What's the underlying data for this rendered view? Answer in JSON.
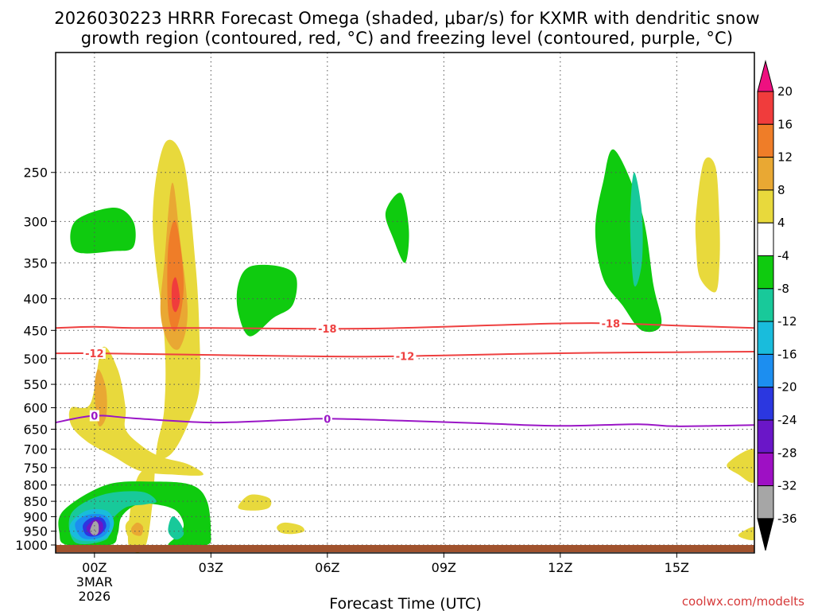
{
  "chart_data": {
    "type": "time-height-contour",
    "title_line1": "2026030223 HRRR Forecast Omega (shaded, μbar/s) for KXMR with dendritic snow",
    "title_line2": "growth region (contoured, red, °C) and freezing level (contoured, purple, °C)",
    "xlabel": "Forecast Time (UTC)",
    "credit": "coolwx.com/modelts",
    "x_range_hours": [
      -1,
      17
    ],
    "x_ticks": [
      {
        "hour": 0,
        "label": "00Z",
        "sub1": "3MAR",
        "sub2": "2026"
      },
      {
        "hour": 3,
        "label": "03Z"
      },
      {
        "hour": 6,
        "label": "06Z"
      },
      {
        "hour": 9,
        "label": "09Z"
      },
      {
        "hour": 12,
        "label": "12Z"
      },
      {
        "hour": 15,
        "label": "15Z"
      }
    ],
    "y_range_mb": [
      1030,
      160
    ],
    "y_ticks": [
      {
        "value": 250,
        "label": "250"
      },
      {
        "value": 300,
        "label": "300"
      },
      {
        "value": 350,
        "label": "350"
      },
      {
        "value": 400,
        "label": "400"
      },
      {
        "value": 450,
        "label": "450"
      },
      {
        "value": 500,
        "label": "500"
      },
      {
        "value": 550,
        "label": "550"
      },
      {
        "value": 600,
        "label": "600"
      },
      {
        "value": 650,
        "label": "650"
      },
      {
        "value": 700,
        "label": "700"
      },
      {
        "value": 750,
        "label": "750"
      },
      {
        "value": 800,
        "label": "800"
      },
      {
        "value": 850,
        "label": "850"
      },
      {
        "value": 900,
        "label": "900"
      },
      {
        "value": 950,
        "label": "950"
      },
      {
        "value": 1000,
        "label": "1000"
      }
    ],
    "colorbar": [
      {
        "label": "20",
        "color": "#ee1080"
      },
      {
        "label": "16",
        "color": "#f03c3c"
      },
      {
        "label": "12",
        "color": "#ef7d28"
      },
      {
        "label": "8",
        "color": "#e9a833"
      },
      {
        "label": "4",
        "color": "#e8d93c"
      },
      {
        "label": "-4",
        "color": "#ffffff"
      },
      {
        "label": "-8",
        "color": "#0fcb0f"
      },
      {
        "label": "-12",
        "color": "#18c99a"
      },
      {
        "label": "-16",
        "color": "#19bcdc"
      },
      {
        "label": "-20",
        "color": "#1c8ef0"
      },
      {
        "label": "-24",
        "color": "#2b37e0"
      },
      {
        "label": "-28",
        "color": "#6a16c8"
      },
      {
        "label": "-32",
        "color": "#9e10c4"
      },
      {
        "label": "-36",
        "color": "#a6a6a6"
      }
    ],
    "colorbar_bottom_color": "#000000",
    "contour_lines": [
      {
        "name": "-18C",
        "label": "-18",
        "color": "#ee4040",
        "points": [
          [
            -1,
            446
          ],
          [
            0,
            444
          ],
          [
            1,
            446
          ],
          [
            3,
            446
          ],
          [
            5,
            447
          ],
          [
            7,
            447
          ],
          [
            9,
            444
          ],
          [
            11,
            440
          ],
          [
            13,
            438
          ],
          [
            15,
            442
          ],
          [
            17,
            446
          ]
        ],
        "label_hours": [
          6,
          13.3
        ]
      },
      {
        "name": "-12C",
        "label": "-12",
        "color": "#ee4040",
        "points": [
          [
            -1,
            490
          ],
          [
            0,
            490
          ],
          [
            1,
            491
          ],
          [
            3,
            493
          ],
          [
            5,
            495
          ],
          [
            7,
            496
          ],
          [
            9,
            494
          ],
          [
            11,
            491
          ],
          [
            13,
            489
          ],
          [
            15,
            488
          ],
          [
            17,
            487
          ]
        ],
        "label_hours": [
          0,
          8
        ]
      },
      {
        "name": "0C",
        "label": "0",
        "color": "#9a16c6",
        "points": [
          [
            -1,
            634
          ],
          [
            0,
            618
          ],
          [
            1,
            624
          ],
          [
            3,
            634
          ],
          [
            5,
            628
          ],
          [
            6,
            625
          ],
          [
            8,
            630
          ],
          [
            10,
            636
          ],
          [
            12,
            642
          ],
          [
            14,
            638
          ],
          [
            15,
            643
          ],
          [
            17,
            640
          ]
        ],
        "label_hours": [
          0,
          6
        ]
      }
    ],
    "omega_regions": [
      {
        "label": "4",
        "points": [
          [
            1.3,
            1010
          ],
          [
            1.5,
            850
          ],
          [
            1.6,
            700
          ],
          [
            1.8,
            600
          ],
          [
            1.8,
            460
          ],
          [
            1.5,
            300
          ],
          [
            1.8,
            225
          ],
          [
            2.3,
            240
          ],
          [
            2.6,
            350
          ],
          [
            2.7,
            450
          ],
          [
            2.7,
            560
          ],
          [
            2.4,
            640
          ],
          [
            2.0,
            710
          ],
          [
            1.5,
            740
          ],
          [
            1.1,
            780
          ],
          [
            0.9,
            900
          ],
          [
            0.9,
            1010
          ]
        ]
      },
      {
        "label": "4",
        "points": [
          [
            -0.1,
            590
          ],
          [
            0.2,
            480
          ],
          [
            0.6,
            520
          ],
          [
            0.8,
            600
          ],
          [
            0.8,
            650
          ],
          [
            1.2,
            690
          ],
          [
            1.7,
            720
          ],
          [
            2.4,
            740
          ],
          [
            2.8,
            770
          ],
          [
            2.1,
            770
          ],
          [
            1.2,
            760
          ],
          [
            0.5,
            720
          ],
          [
            -0.2,
            680
          ],
          [
            -0.6,
            640
          ],
          [
            -0.6,
            600
          ]
        ]
      },
      {
        "label": "8",
        "points": [
          [
            0,
            560
          ],
          [
            0.1,
            520
          ],
          [
            0.3,
            560
          ],
          [
            0.3,
            620
          ],
          [
            0.1,
            640
          ]
        ]
      },
      {
        "label": "8",
        "points": [
          [
            1.8,
            350
          ],
          [
            2.0,
            260
          ],
          [
            2.2,
            320
          ],
          [
            2.4,
            420
          ],
          [
            2.2,
            480
          ],
          [
            1.9,
            470
          ],
          [
            1.7,
            420
          ]
        ]
      },
      {
        "label": "12",
        "points": [
          [
            1.9,
            330
          ],
          [
            2.1,
            300
          ],
          [
            2.3,
            380
          ],
          [
            2.1,
            450
          ],
          [
            1.9,
            420
          ]
        ]
      },
      {
        "label": "16",
        "points": [
          [
            2.0,
            380
          ],
          [
            2.1,
            370
          ],
          [
            2.2,
            400
          ],
          [
            2.1,
            420
          ],
          [
            2.0,
            410
          ]
        ]
      },
      {
        "label": "4",
        "points": [
          [
            3.7,
            870
          ],
          [
            4.0,
            830
          ],
          [
            4.5,
            840
          ],
          [
            4.5,
            870
          ],
          [
            4.1,
            880
          ]
        ]
      },
      {
        "label": "4",
        "points": [
          [
            4.7,
            935
          ],
          [
            4.9,
            920
          ],
          [
            5.3,
            930
          ],
          [
            5.4,
            950
          ],
          [
            5.1,
            960
          ],
          [
            4.8,
            955
          ]
        ]
      },
      {
        "label": "4",
        "points": [
          [
            15.5,
            290
          ],
          [
            15.7,
            240
          ],
          [
            16.0,
            245
          ],
          [
            16.1,
            300
          ],
          [
            16.1,
            350
          ],
          [
            16.0,
            390
          ],
          [
            15.6,
            370
          ],
          [
            15.5,
            330
          ]
        ]
      },
      {
        "label": "4",
        "points": [
          [
            16.3,
            740
          ],
          [
            17,
            700
          ],
          [
            17,
            790
          ],
          [
            16.6,
            770
          ]
        ]
      },
      {
        "label": "4",
        "points": [
          [
            16.6,
            960
          ],
          [
            17,
            935
          ],
          [
            17,
            980
          ],
          [
            16.7,
            975
          ]
        ]
      },
      {
        "label": "-8",
        "points": [
          [
            -0.5,
            300
          ],
          [
            0.5,
            285
          ],
          [
            1.0,
            300
          ],
          [
            1.0,
            330
          ],
          [
            0.5,
            335
          ],
          [
            -0.5,
            335
          ]
        ]
      },
      {
        "label": "-8",
        "points": [
          [
            3.7,
            380
          ],
          [
            4.0,
            355
          ],
          [
            4.8,
            355
          ],
          [
            5.2,
            370
          ],
          [
            5.1,
            410
          ],
          [
            4.6,
            430
          ],
          [
            4.0,
            460
          ],
          [
            3.7,
            420
          ]
        ]
      },
      {
        "label": "-8",
        "points": [
          [
            7.5,
            290
          ],
          [
            7.9,
            270
          ],
          [
            8.1,
            310
          ],
          [
            8.0,
            350
          ],
          [
            7.7,
            320
          ]
        ]
      },
      {
        "label": "-8",
        "points": [
          [
            13.1,
            260
          ],
          [
            13.4,
            230
          ],
          [
            14.1,
            290
          ],
          [
            14.4,
            380
          ],
          [
            14.6,
            440
          ],
          [
            14.1,
            450
          ],
          [
            13.6,
            410
          ],
          [
            13.1,
            370
          ],
          [
            12.9,
            310
          ]
        ]
      },
      {
        "label": "-12",
        "points": [
          [
            13.9,
            250
          ],
          [
            14.1,
            290
          ],
          [
            14.1,
            350
          ],
          [
            13.9,
            380
          ],
          [
            13.8,
            300
          ]
        ]
      },
      {
        "label": "-8",
        "points": [
          [
            -0.8,
            880
          ],
          [
            0.3,
            800
          ],
          [
            1.5,
            790
          ],
          [
            2.5,
            800
          ],
          [
            2.9,
            850
          ],
          [
            3.0,
            960
          ],
          [
            2.9,
            1000
          ],
          [
            2.2,
            1010
          ],
          [
            1.9,
            1000
          ],
          [
            2.1,
            970
          ],
          [
            2.3,
            930
          ],
          [
            2.1,
            880
          ],
          [
            1.6,
            860
          ],
          [
            1.1,
            860
          ],
          [
            0.7,
            900
          ],
          [
            0.6,
            960
          ],
          [
            0.4,
            1000
          ],
          [
            -0.7,
            1000
          ],
          [
            -0.9,
            960
          ]
        ]
      },
      {
        "label": "-12",
        "points": [
          [
            -0.6,
            890
          ],
          [
            0.2,
            830
          ],
          [
            1.2,
            820
          ],
          [
            1.6,
            850
          ],
          [
            1.3,
            860
          ],
          [
            0.8,
            870
          ],
          [
            0.4,
            920
          ],
          [
            0.3,
            980
          ],
          [
            -0.5,
            990
          ]
        ]
      },
      {
        "label": "-12",
        "points": [
          [
            2.0,
            900
          ],
          [
            2.2,
            920
          ],
          [
            2.3,
            960
          ],
          [
            2.1,
            980
          ],
          [
            1.9,
            950
          ]
        ]
      },
      {
        "label": "-16",
        "points": [
          [
            -0.6,
            920
          ],
          [
            -0.2,
            880
          ],
          [
            0.3,
            880
          ],
          [
            0.5,
            920
          ],
          [
            0.3,
            975
          ],
          [
            -0.3,
            985
          ],
          [
            -0.6,
            960
          ]
        ]
      },
      {
        "label": "-20",
        "points": [
          [
            -0.5,
            925
          ],
          [
            -0.2,
            895
          ],
          [
            0.25,
            895
          ],
          [
            0.4,
            930
          ],
          [
            0.2,
            970
          ],
          [
            -0.3,
            975
          ]
        ]
      },
      {
        "label": "-24",
        "points": [
          [
            -0.3,
            930
          ],
          [
            -0.1,
            905
          ],
          [
            0.2,
            905
          ],
          [
            0.3,
            935
          ],
          [
            0.1,
            965
          ],
          [
            -0.2,
            965
          ]
        ]
      },
      {
        "label": "-28",
        "points": [
          [
            -0.2,
            935
          ],
          [
            0,
            910
          ],
          [
            0.2,
            920
          ],
          [
            0.2,
            950
          ],
          [
            0,
            965
          ],
          [
            -0.15,
            955
          ]
        ]
      },
      {
        "label": "-36",
        "points": [
          [
            -0.1,
            940
          ],
          [
            0,
            915
          ],
          [
            0.1,
            925
          ],
          [
            0.1,
            955
          ],
          [
            0,
            965
          ],
          [
            -0.1,
            955
          ]
        ]
      },
      {
        "label": "4",
        "points": [
          [
            0.8,
            930
          ],
          [
            1.0,
            905
          ],
          [
            1.3,
            915
          ],
          [
            1.4,
            950
          ],
          [
            1.2,
            980
          ],
          [
            0.9,
            975
          ]
        ]
      },
      {
        "label": "8",
        "points": [
          [
            0.95,
            940
          ],
          [
            1.1,
            920
          ],
          [
            1.25,
            935
          ],
          [
            1.2,
            965
          ],
          [
            1.0,
            960
          ]
        ]
      }
    ]
  }
}
